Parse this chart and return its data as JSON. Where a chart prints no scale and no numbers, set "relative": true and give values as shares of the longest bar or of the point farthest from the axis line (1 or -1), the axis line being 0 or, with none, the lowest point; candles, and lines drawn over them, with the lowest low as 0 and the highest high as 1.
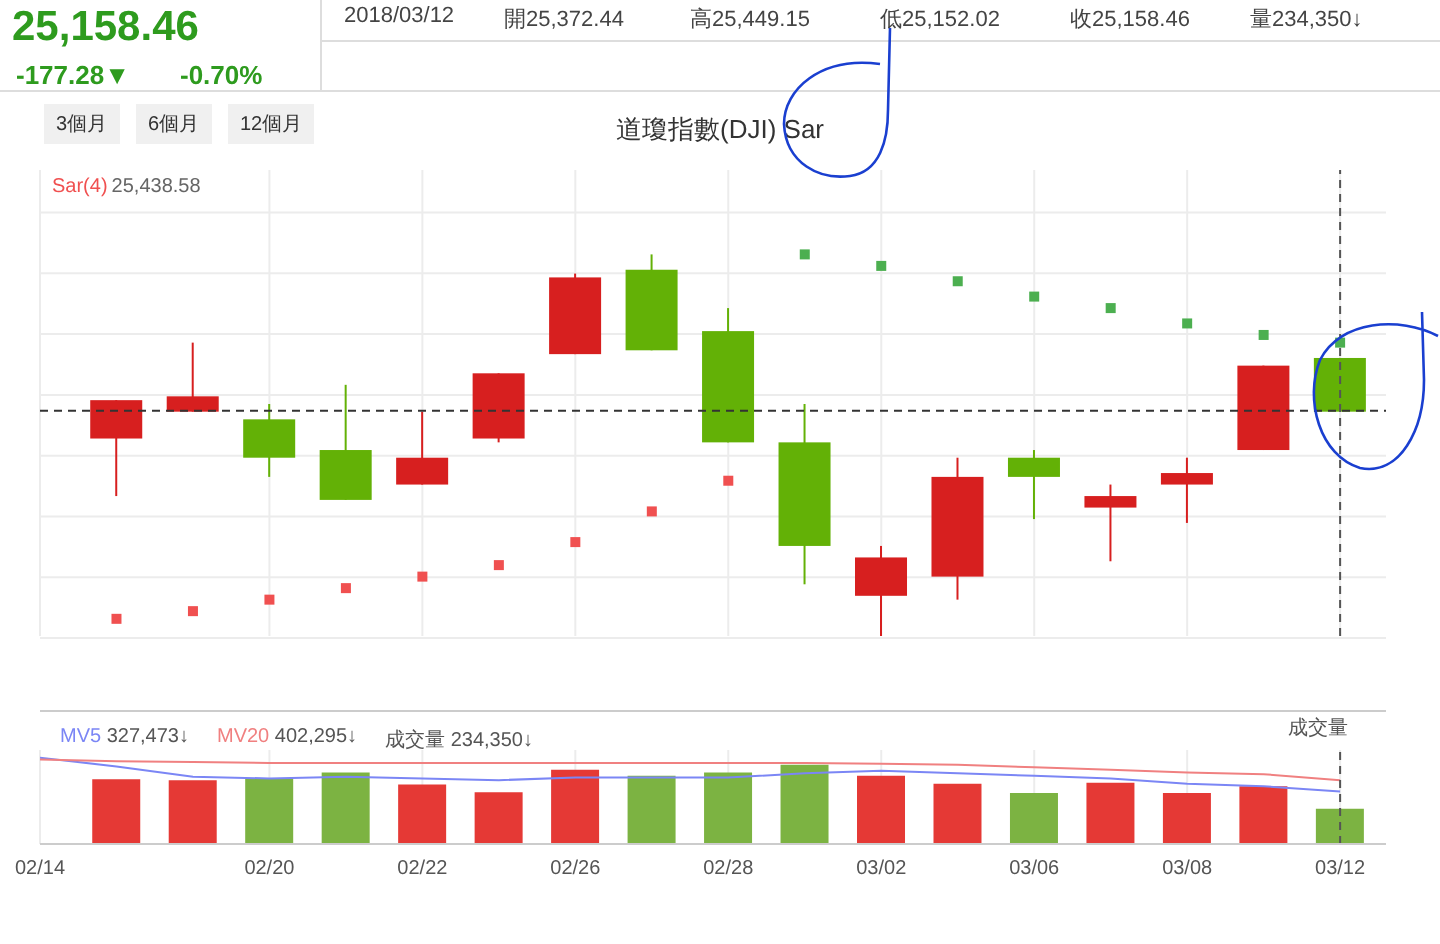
{
  "chart_data": [
    {
      "type": "other",
      "annotations": [
        "25,158.46",
        "-177.28▼",
        "-0.70%",
        "2018/03/12",
        "開25,372.44",
        "高25,449.15",
        "低25,152.02",
        "收25,158.46",
        "量234,350↓",
        "3個月",
        "6個月",
        "12個月"
      ]
    },
    {
      "type": "candlestick",
      "title": "道瓊指數(DJI) Sar",
      "relative": true,
      "grid": true,
      "tick_labels": false,
      "categories": [
        "02/14",
        null,
        null,
        "02/20",
        null,
        "02/22",
        null,
        "02/26",
        null,
        "02/28",
        null,
        "03/02",
        null,
        "03/06",
        null,
        "03/08",
        null,
        "03/12"
      ],
      "ohlc": [
        null,
        [
          0.52,
          0.62,
          0.37,
          0.62
        ],
        [
          0.59,
          0.77,
          0.59,
          0.63
        ],
        [
          0.57,
          0.61,
          0.42,
          0.47
        ],
        [
          0.49,
          0.66,
          0.36,
          0.36
        ],
        [
          0.4,
          0.59,
          0.4,
          0.47
        ],
        [
          0.52,
          0.69,
          0.51,
          0.69
        ],
        [
          0.74,
          0.95,
          0.74,
          0.94
        ],
        [
          0.96,
          1,
          0.75,
          0.75
        ],
        [
          0.8,
          0.86,
          0.51,
          0.51
        ],
        [
          0.51,
          0.61,
          0.14,
          0.24
        ],
        [
          0.11,
          0.24,
          0,
          0.21
        ],
        [
          0.16,
          0.47,
          0.1,
          0.42
        ],
        [
          0.47,
          0.49,
          0.31,
          0.42
        ],
        [
          0.34,
          0.4,
          0.2,
          0.37
        ],
        [
          0.4,
          0.47,
          0.3,
          0.43
        ],
        [
          0.49,
          0.71,
          0.49,
          0.71
        ],
        [
          0.73,
          0.73,
          0.59,
          0.59
        ]
      ],
      "colors": [
        null,
        "#d71f1f",
        "#d71f1f",
        "#63b106",
        "#63b106",
        "#d71f1f",
        "#d71f1f",
        "#d71f1f",
        "#63b106",
        "#63b106",
        "#63b106",
        "#d71f1f",
        "#d71f1f",
        "#63b106",
        "#d71f1f",
        "#d71f1f",
        "#d71f1f",
        "#63b106"
      ],
      "series": [
        {
          "name": "Sar(4)",
          "type": "scatter",
          "marker": "square",
          "color": "#f05050",
          "values": [
            null,
            0.05,
            0.07,
            0.1,
            0.13,
            0.16,
            0.19,
            0.25,
            0.33,
            0.41,
            1.0,
            0.97,
            0.93,
            0.89,
            0.86,
            0.82,
            0.79,
            0.77
          ],
          "colors": [
            null,
            "#f05050",
            "#f05050",
            "#f05050",
            "#f05050",
            "#f05050",
            "#f05050",
            "#f05050",
            "#f05050",
            "#f05050",
            "#4caf50",
            "#4caf50",
            "#4caf50",
            "#4caf50",
            "#4caf50",
            "#4caf50",
            "#4caf50",
            "#4caf50"
          ]
        }
      ],
      "annotations": [
        "25,438.58"
      ],
      "ref_lines": [
        {
          "axis": "y",
          "value": 0.59,
          "line_style": "dashed",
          "color": "#333333"
        },
        {
          "axis": "x",
          "value": "03/12",
          "line_style": "dashed",
          "color": "#555555"
        }
      ]
    },
    {
      "type": "bar",
      "relative": true,
      "grid": "x",
      "tick_labels": "x",
      "ylabel": "成交量",
      "categories": [
        "02/14",
        null,
        null,
        "02/20",
        null,
        "02/22",
        null,
        "02/26",
        null,
        "02/28",
        null,
        "03/02",
        null,
        "03/06",
        null,
        "03/08",
        null,
        "03/12"
      ],
      "series": [
        {
          "name": "MV5",
          "type": "line",
          "color": "#7b86f5",
          "values": [
            1,
            0.9,
            0.78,
            0.76,
            0.78,
            0.76,
            0.74,
            0.77,
            0.77,
            0.77,
            0.82,
            0.85,
            0.82,
            0.79,
            0.76,
            0.7,
            0.67,
            0.61
          ]
        },
        {
          "name": "MV20",
          "type": "line",
          "color": "#f08080",
          "values": [
            0.98,
            0.96,
            0.95,
            0.94,
            0.94,
            0.94,
            0.94,
            0.94,
            0.94,
            0.94,
            0.94,
            0.93,
            0.92,
            0.89,
            0.86,
            0.83,
            0.81,
            0.74
          ]
        },
        {
          "type": "bar",
          "color": "#666666",
          "values": [
            null,
            0.75,
            0.74,
            0.76,
            0.83,
            0.69,
            0.6,
            0.86,
            0.79,
            0.83,
            0.92,
            0.79,
            0.7,
            0.59,
            0.71,
            0.59,
            0.67,
            0.41
          ],
          "colors": [
            null,
            "#e53935",
            "#e53935",
            "#7cb342",
            "#7cb342",
            "#e53935",
            "#e53935",
            "#e53935",
            "#7cb342",
            "#7cb342",
            "#7cb342",
            "#e53935",
            "#e53935",
            "#7cb342",
            "#e53935",
            "#e53935",
            "#e53935",
            "#7cb342"
          ]
        }
      ],
      "annotations": [
        "327,473↓",
        "402,295↓",
        "成交量 234,350↓"
      ],
      "ref_lines": [
        {
          "axis": "x",
          "value": "03/12",
          "line_style": "dashed",
          "color": "#555555"
        }
      ]
    }
  ]
}
